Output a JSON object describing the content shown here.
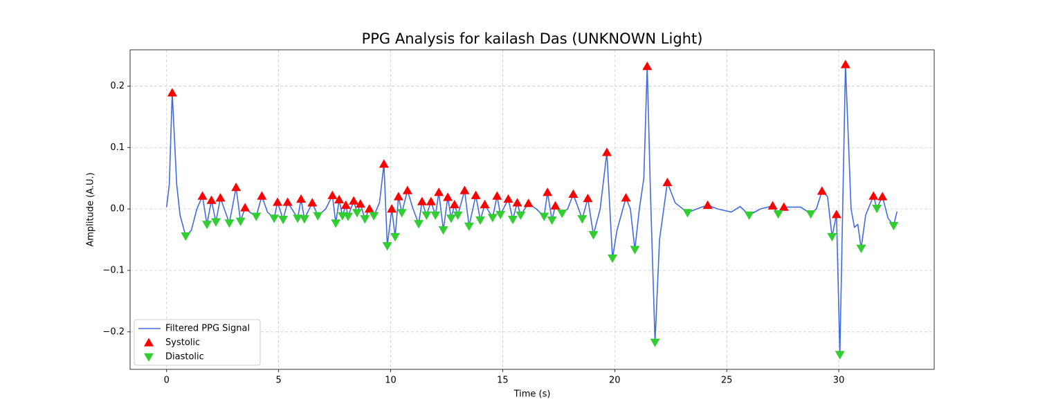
{
  "chart_data": {
    "type": "line",
    "title": "PPG Analysis for kailash Das (UNKNOWN Light)",
    "xlabel": "Time (s)",
    "ylabel": "Amplitude (A.U.)",
    "xlim": [
      -1.63,
      34.26
    ],
    "ylim": [
      -0.261,
      0.259
    ],
    "xticks": [
      0,
      5,
      10,
      15,
      20,
      25,
      30
    ],
    "yticks": [
      {
        "value": -0.2,
        "label": "−0.2"
      },
      {
        "value": -0.1,
        "label": "−0.1"
      },
      {
        "value": 0.0,
        "label": "0.0"
      },
      {
        "value": 0.1,
        "label": "0.1"
      },
      {
        "value": 0.2,
        "label": "0.2"
      }
    ],
    "grid": true,
    "legend": "lower left",
    "series": [
      {
        "name": "Filtered PPG Signal",
        "type": "line",
        "color": "#4169e1",
        "x": [
          0.0,
          0.12,
          0.25,
          0.45,
          0.6,
          0.85,
          1.1,
          1.35,
          1.6,
          1.8,
          2.0,
          2.2,
          2.4,
          2.8,
          3.1,
          3.3,
          3.5,
          3.7,
          4.0,
          4.25,
          4.5,
          4.8,
          4.95,
          5.2,
          5.4,
          5.85,
          6.0,
          6.15,
          6.5,
          6.75,
          7.1,
          7.4,
          7.55,
          7.7,
          7.85,
          8.0,
          8.1,
          8.35,
          8.5,
          8.65,
          8.85,
          9.05,
          9.25,
          9.5,
          9.7,
          9.85,
          10.05,
          10.2,
          10.35,
          10.5,
          10.75,
          11.0,
          11.25,
          11.4,
          11.6,
          11.8,
          12.0,
          12.15,
          12.35,
          12.55,
          12.7,
          12.85,
          13.0,
          13.3,
          13.5,
          13.8,
          14.0,
          14.2,
          14.55,
          14.75,
          14.9,
          15.25,
          15.45,
          15.65,
          15.8,
          16.15,
          16.5,
          16.85,
          17.0,
          17.2,
          17.35,
          17.65,
          17.9,
          18.15,
          18.55,
          18.8,
          19.05,
          19.35,
          19.65,
          19.9,
          20.1,
          20.5,
          20.7,
          20.9,
          21.1,
          21.3,
          21.45,
          21.6,
          21.8,
          22.0,
          22.35,
          22.7,
          23.25,
          23.8,
          24.15,
          24.6,
          25.2,
          25.6,
          26.0,
          26.5,
          27.05,
          27.3,
          27.55,
          28.3,
          28.75,
          29.0,
          29.25,
          29.5,
          29.7,
          29.9,
          30.05,
          30.3,
          30.55,
          30.7,
          30.85,
          31.0,
          31.2,
          31.55,
          31.7,
          31.95,
          32.2,
          32.45,
          32.6
        ],
        "values": [
          0.003,
          0.04,
          0.189,
          0.04,
          -0.01,
          -0.044,
          -0.035,
          0.0,
          0.021,
          -0.025,
          0.014,
          -0.021,
          0.018,
          -0.023,
          0.035,
          -0.02,
          0.002,
          -0.005,
          -0.012,
          0.021,
          -0.005,
          -0.015,
          0.011,
          -0.017,
          0.011,
          -0.015,
          0.016,
          -0.016,
          0.01,
          -0.011,
          0.0,
          0.022,
          -0.023,
          0.015,
          -0.011,
          0.006,
          -0.012,
          0.013,
          -0.006,
          0.008,
          -0.016,
          0.0,
          -0.011,
          0.01,
          0.073,
          -0.06,
          0.0,
          -0.045,
          0.02,
          -0.006,
          0.03,
          0.0,
          -0.024,
          0.012,
          -0.01,
          0.012,
          -0.01,
          0.027,
          -0.034,
          0.019,
          -0.015,
          0.007,
          -0.01,
          0.03,
          -0.028,
          0.022,
          -0.018,
          0.007,
          -0.014,
          0.021,
          -0.009,
          0.016,
          -0.017,
          0.01,
          -0.01,
          0.009,
          0.0,
          -0.012,
          0.027,
          -0.018,
          0.005,
          -0.007,
          0.0,
          0.024,
          -0.016,
          0.017,
          -0.042,
          0.0,
          0.092,
          -0.08,
          -0.035,
          0.018,
          0.0,
          -0.066,
          0.0,
          0.05,
          0.232,
          0.02,
          -0.217,
          -0.05,
          0.043,
          0.01,
          -0.006,
          0.002,
          0.006,
          0.0,
          -0.005,
          0.004,
          -0.01,
          0.0,
          0.005,
          -0.008,
          0.003,
          0.003,
          -0.008,
          0.0,
          0.029,
          0.02,
          -0.045,
          -0.009,
          -0.237,
          0.235,
          0.0,
          -0.03,
          -0.025,
          -0.064,
          -0.01,
          0.021,
          0.001,
          0.02,
          -0.015,
          -0.027,
          -0.004
        ]
      },
      {
        "name": "Systolic",
        "type": "scatter",
        "marker": "triangle-up",
        "color": "#ff0000",
        "x": [
          0.25,
          1.6,
          2.0,
          2.4,
          3.1,
          3.5,
          4.25,
          4.95,
          5.4,
          6.0,
          6.5,
          7.4,
          7.7,
          8.0,
          8.35,
          8.65,
          9.05,
          9.7,
          10.05,
          10.35,
          10.75,
          11.4,
          11.8,
          12.15,
          12.55,
          12.85,
          13.3,
          13.8,
          14.2,
          14.75,
          15.25,
          15.65,
          16.15,
          17.0,
          17.35,
          18.15,
          18.8,
          19.65,
          20.5,
          21.45,
          22.35,
          24.15,
          27.05,
          27.55,
          29.25,
          29.9,
          30.3,
          31.55,
          31.95
        ],
        "values": [
          0.189,
          0.021,
          0.014,
          0.018,
          0.035,
          0.002,
          0.021,
          0.011,
          0.011,
          0.016,
          0.01,
          0.022,
          0.015,
          0.006,
          0.013,
          0.008,
          0.0,
          0.073,
          0.0,
          0.02,
          0.03,
          0.012,
          0.012,
          0.027,
          0.019,
          0.007,
          0.03,
          0.022,
          0.007,
          0.021,
          0.016,
          0.01,
          0.009,
          0.027,
          0.005,
          0.024,
          0.017,
          0.092,
          0.018,
          0.232,
          0.043,
          0.006,
          0.005,
          0.003,
          0.029,
          -0.009,
          0.235,
          0.021,
          0.02
        ]
      },
      {
        "name": "Diastolic",
        "type": "scatter",
        "marker": "triangle-down",
        "color": "#32cd32",
        "x": [
          0.85,
          1.8,
          2.2,
          2.8,
          3.3,
          4.0,
          4.8,
          5.2,
          5.85,
          6.15,
          6.75,
          7.55,
          7.85,
          8.1,
          8.5,
          8.85,
          9.25,
          9.85,
          10.2,
          10.5,
          11.25,
          11.6,
          12.0,
          12.35,
          12.7,
          13.0,
          13.5,
          14.0,
          14.55,
          14.9,
          15.45,
          15.8,
          16.85,
          17.2,
          17.65,
          18.55,
          19.05,
          19.9,
          20.9,
          21.8,
          23.25,
          26.0,
          27.3,
          28.75,
          29.7,
          30.05,
          31.0,
          31.7,
          32.45
        ],
        "values": [
          -0.044,
          -0.025,
          -0.021,
          -0.023,
          -0.02,
          -0.012,
          -0.015,
          -0.017,
          -0.015,
          -0.016,
          -0.011,
          -0.023,
          -0.011,
          -0.012,
          -0.006,
          -0.016,
          -0.011,
          -0.06,
          -0.045,
          -0.006,
          -0.024,
          -0.01,
          -0.01,
          -0.034,
          -0.015,
          -0.01,
          -0.028,
          -0.018,
          -0.014,
          -0.009,
          -0.017,
          -0.01,
          -0.012,
          -0.018,
          -0.007,
          -0.016,
          -0.042,
          -0.08,
          -0.066,
          -0.217,
          -0.006,
          -0.01,
          -0.008,
          -0.008,
          -0.045,
          -0.237,
          -0.064,
          0.001,
          -0.027
        ]
      }
    ]
  }
}
